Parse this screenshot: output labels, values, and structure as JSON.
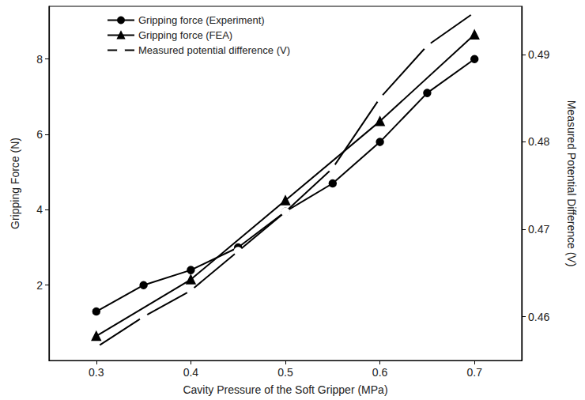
{
  "chart_data": {
    "type": "line",
    "xlabel": "Cavity Pressure of the Soft Gripper (MPa)",
    "ylabel": "Gripping Force (N)",
    "y2label": "Measured Potential Difference (V)",
    "xlim": [
      0.25,
      0.75
    ],
    "xticks": [
      0.3,
      0.4,
      0.5,
      0.6,
      0.7
    ],
    "ylim": [
      0,
      9.4
    ],
    "yticks": [
      2,
      4,
      6,
      8
    ],
    "y2lim": [
      0.455,
      0.4955
    ],
    "y2ticks": [
      0.46,
      0.47,
      0.48,
      0.49
    ],
    "grid": false,
    "legend": "upper left",
    "series": [
      {
        "name": "Gripping force (Experiment)",
        "color": "#000000",
        "marker": "circle",
        "line_style": "solid",
        "axis": "y",
        "x": [
          0.3,
          0.35,
          0.4,
          0.45,
          0.5,
          0.55,
          0.6,
          0.65,
          0.7
        ],
        "values": [
          1.3,
          2.0,
          2.4,
          3.0,
          3.95,
          4.7,
          5.8,
          7.1,
          8.0
        ]
      },
      {
        "name": "Gripping force (FEA)",
        "color": "#000000",
        "marker": "triangle",
        "line_style": "solid",
        "axis": "y",
        "x": [
          0.3,
          0.4,
          0.5,
          0.6,
          0.7
        ],
        "values": [
          0.65,
          2.15,
          4.25,
          6.35,
          8.65
        ]
      },
      {
        "name": "Measured potential difference (V)",
        "color": "#000000",
        "marker": "emptyCircle",
        "line_style": "solid",
        "axis": "y2",
        "x": [
          0.3,
          0.35,
          0.4,
          0.45,
          0.5,
          0.55,
          0.6,
          0.65,
          0.7
        ],
        "values": [
          0.4565,
          0.46,
          0.463,
          0.4675,
          0.472,
          0.477,
          0.485,
          0.491,
          0.4948
        ]
      }
    ]
  }
}
